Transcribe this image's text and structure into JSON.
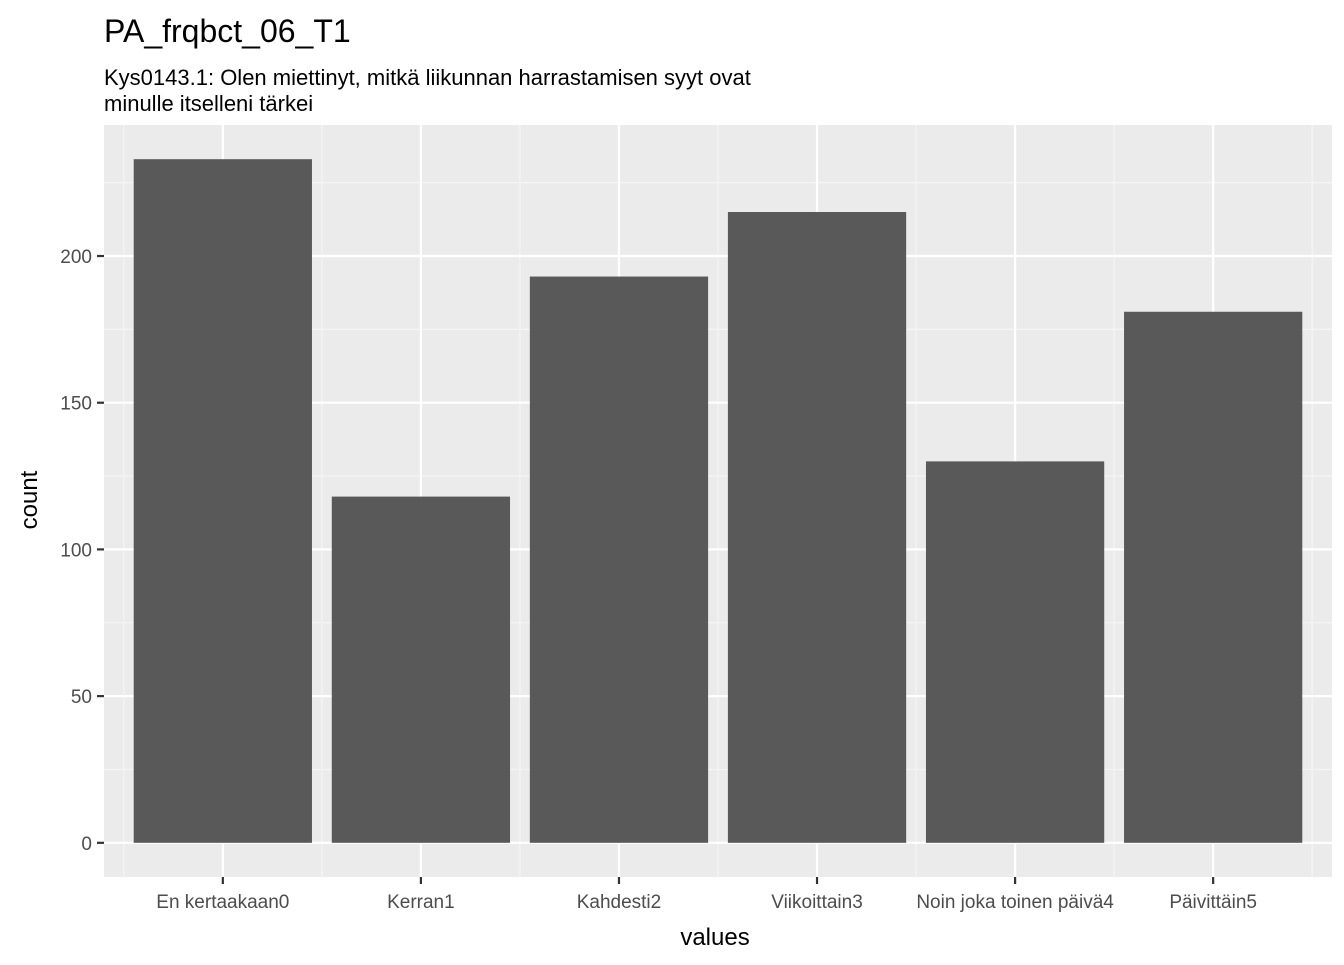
{
  "chart_data": {
    "type": "bar",
    "title": "PA_frqbct_06_T1",
    "subtitle": [
      "Kys0143.1: Olen miettinyt, mitkä liikunnan harrastamisen syyt ovat",
      "minulle itselleni tärkei"
    ],
    "xlabel": "values",
    "ylabel": "count",
    "categories": [
      "En kertaakaan0",
      "Kerran1",
      "Kahdesti2",
      "Viikoittain3",
      "Noin joka toinen päivä4",
      "Päivittäin5"
    ],
    "values": [
      233,
      118,
      193,
      215,
      130,
      181
    ],
    "ylim": [
      -11.65,
      244.65
    ],
    "yticks": [
      0,
      50,
      100,
      150,
      200
    ],
    "ytick_labels": [
      "0",
      "50",
      "100",
      "150",
      "200"
    ],
    "grid": true,
    "legend": "none",
    "colors": {
      "bar": "#595959",
      "panel": "#ebebeb",
      "grid_major": "#ffffff",
      "grid_minor": "#f5f5f5",
      "tick_text": "#4d4d4d"
    }
  }
}
